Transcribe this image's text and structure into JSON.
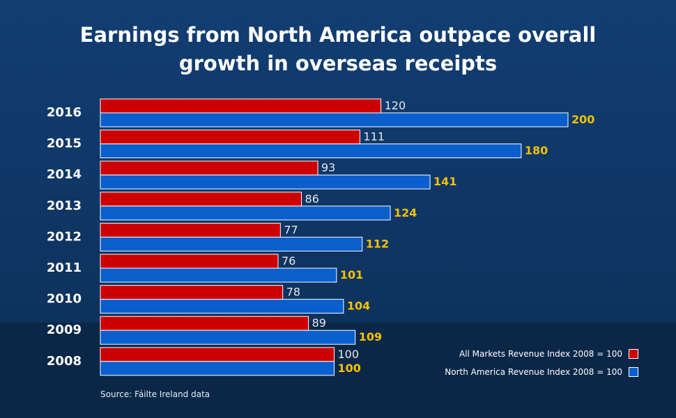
{
  "chart_data": {
    "type": "bar",
    "orientation": "horizontal",
    "title": "Earnings from North America outpace overall growth in overseas receipts",
    "title_lines": [
      "Earnings from North America outpace overall",
      "growth in overseas receipts"
    ],
    "categories": [
      "2016",
      "2015",
      "2014",
      "2013",
      "2012",
      "2011",
      "2010",
      "2009",
      "2008"
    ],
    "series": [
      {
        "name": "All Markets Revenue Index 2008 = 100",
        "color": "#cc0000",
        "values": [
          120,
          111,
          93,
          86,
          77,
          76,
          78,
          89,
          100
        ]
      },
      {
        "name": "North America Revenue Index 2008 = 100",
        "color": "#0a5fcc",
        "values": [
          200,
          180,
          141,
          124,
          112,
          101,
          104,
          109,
          100
        ]
      }
    ],
    "xlim": [
      0,
      200
    ],
    "grid": false,
    "legend_position": "bottom-right",
    "source": "Source: Fáilte Ireland data"
  }
}
